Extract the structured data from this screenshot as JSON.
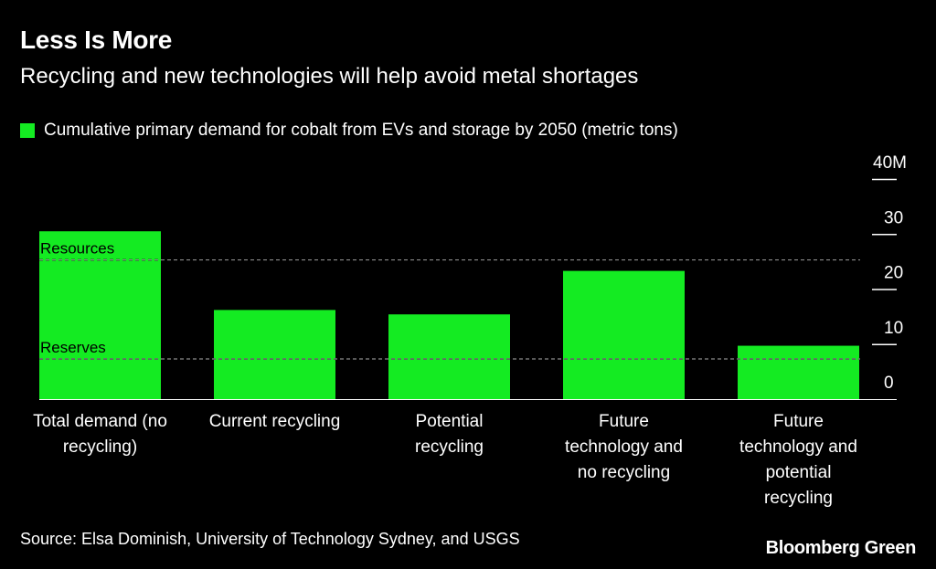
{
  "header": {
    "title": "Less Is More",
    "subtitle": "Recycling and new technologies will help avoid metal shortages"
  },
  "legend": {
    "label": "Cumulative primary demand for cobalt from EVs and storage by 2050 (metric tons)"
  },
  "footer": {
    "source": "Source: Elsa Dominish, University of Technology Sydney, and USGS",
    "brand": "Bloomberg Green"
  },
  "colors": {
    "background": "#000000",
    "bar": "#14eb22",
    "text": "#ffffff",
    "reference_line": "#9a9a9a"
  },
  "chart_data": {
    "type": "bar",
    "categories": [
      [
        "Total demand (no",
        "recycling)"
      ],
      [
        "Current recycling"
      ],
      [
        "Potential",
        "recycling"
      ],
      [
        "Future",
        "technology and",
        "no recycling"
      ],
      [
        "Future",
        "technology and",
        "potential",
        "recycling"
      ]
    ],
    "series": [
      {
        "name": "Cumulative primary demand for cobalt from EVs and storage by 2050 (metric tons)",
        "values": [
          30.5,
          16.2,
          15.4,
          23.3,
          9.7
        ]
      }
    ],
    "ylim": [
      0,
      40
    ],
    "yticks": [
      0,
      10,
      20,
      30,
      40
    ],
    "ytick_labels": [
      "0",
      "10",
      "20",
      "30",
      "40M"
    ],
    "y_axis_side": "right",
    "reference_lines": [
      {
        "label": "Resources",
        "value": 25.3
      },
      {
        "label": "Reserves",
        "value": 7.3
      }
    ]
  }
}
